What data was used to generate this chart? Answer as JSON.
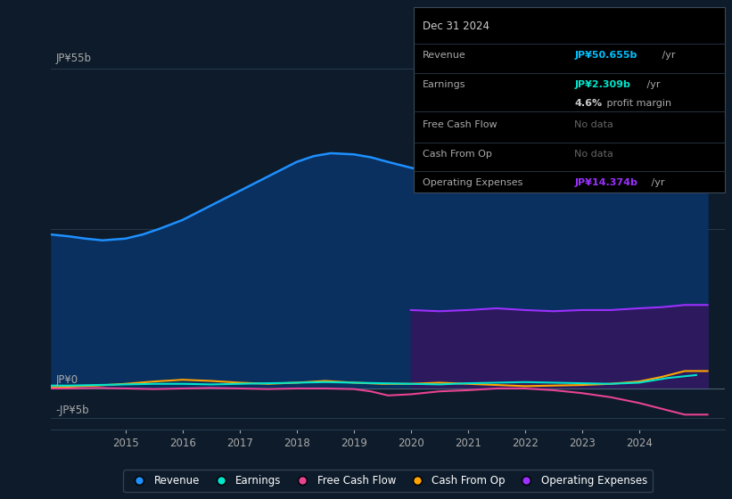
{
  "bg_color": "#0d1b2a",
  "plot_bg_color": "#0d1b2a",
  "grid_color": "#253a50",
  "revenue_color": "#1e90ff",
  "revenue_fill_color": "#0a3060",
  "earnings_color": "#00e5cc",
  "fcf_color": "#e84393",
  "cashfromop_color": "#ffa500",
  "opex_color": "#9b30ff",
  "opex_fill_color": "#2d1a5e",
  "ylabel_top": "JP¥55b",
  "ylabel_zero": "JP¥0",
  "ylabel_neg": "-JP¥5b",
  "ylim": [
    -7,
    60
  ],
  "y_top_line": 55,
  "y_mid_line": 27.5,
  "y_zero_line": 0,
  "y_neg_line": -5,
  "xlim_start": 2013.7,
  "xlim_end": 2025.5,
  "xticks": [
    2015,
    2016,
    2017,
    2018,
    2019,
    2020,
    2021,
    2022,
    2023,
    2024
  ],
  "revenue_x": [
    2013.7,
    2014.0,
    2014.3,
    2014.6,
    2015.0,
    2015.3,
    2015.6,
    2016.0,
    2016.4,
    2016.8,
    2017.2,
    2017.6,
    2018.0,
    2018.3,
    2018.6,
    2019.0,
    2019.3,
    2019.6,
    2020.0,
    2020.4,
    2020.8,
    2021.2,
    2021.6,
    2022.0,
    2022.4,
    2022.8,
    2023.2,
    2023.6,
    2024.0,
    2024.4,
    2024.8,
    2025.2
  ],
  "revenue_y": [
    26.5,
    26.2,
    25.8,
    25.5,
    25.8,
    26.5,
    27.5,
    29.0,
    31.0,
    33.0,
    35.0,
    37.0,
    39.0,
    40.0,
    40.5,
    40.3,
    39.8,
    39.0,
    38.0,
    37.2,
    36.8,
    36.5,
    37.0,
    37.2,
    37.0,
    37.5,
    38.5,
    40.0,
    43.0,
    46.5,
    50.0,
    50.655
  ],
  "earnings_x": [
    2013.7,
    2014.0,
    2014.5,
    2015.0,
    2015.5,
    2016.0,
    2016.5,
    2017.0,
    2017.5,
    2018.0,
    2018.5,
    2019.0,
    2019.5,
    2020.0,
    2020.5,
    2021.0,
    2021.5,
    2022.0,
    2022.5,
    2023.0,
    2023.5,
    2024.0,
    2024.5,
    2025.0
  ],
  "earnings_y": [
    0.5,
    0.5,
    0.6,
    0.7,
    0.8,
    0.8,
    0.7,
    0.8,
    0.9,
    1.0,
    1.1,
    1.0,
    0.9,
    0.8,
    0.7,
    0.9,
    1.0,
    1.1,
    1.0,
    0.9,
    0.8,
    1.0,
    1.8,
    2.309
  ],
  "fcf_x": [
    2013.7,
    2014.0,
    2014.5,
    2015.0,
    2015.5,
    2016.0,
    2016.5,
    2017.0,
    2017.5,
    2018.0,
    2018.5,
    2019.0,
    2019.3,
    2019.6,
    2020.0,
    2020.5,
    2021.0,
    2021.5,
    2022.0,
    2022.5,
    2023.0,
    2023.5,
    2024.0,
    2024.4,
    2024.8,
    2025.2
  ],
  "fcf_y": [
    0.0,
    0.0,
    0.1,
    0.0,
    -0.1,
    0.0,
    0.1,
    0.0,
    -0.1,
    0.0,
    0.0,
    -0.1,
    -0.5,
    -1.2,
    -1.0,
    -0.5,
    -0.3,
    0.0,
    0.0,
    -0.3,
    -0.8,
    -1.5,
    -2.5,
    -3.5,
    -4.5,
    -4.5
  ],
  "cashfromop_x": [
    2013.7,
    2014.0,
    2014.5,
    2015.0,
    2015.5,
    2016.0,
    2016.5,
    2017.0,
    2017.5,
    2018.0,
    2018.5,
    2019.0,
    2019.5,
    2020.0,
    2020.5,
    2021.0,
    2021.5,
    2022.0,
    2022.5,
    2023.0,
    2023.5,
    2024.0,
    2024.4,
    2024.8,
    2025.2
  ],
  "cashfromop_y": [
    0.2,
    0.3,
    0.5,
    0.8,
    1.2,
    1.5,
    1.3,
    1.0,
    0.8,
    1.0,
    1.3,
    1.0,
    0.8,
    0.8,
    1.0,
    0.8,
    0.6,
    0.4,
    0.5,
    0.6,
    0.8,
    1.2,
    2.0,
    3.0,
    3.0
  ],
  "opex_x": [
    2020.0,
    2020.5,
    2021.0,
    2021.5,
    2022.0,
    2022.5,
    2023.0,
    2023.5,
    2024.0,
    2024.4,
    2024.8,
    2025.2
  ],
  "opex_y": [
    13.5,
    13.3,
    13.5,
    13.8,
    13.5,
    13.3,
    13.5,
    13.5,
    13.8,
    14.0,
    14.374,
    14.374
  ],
  "legend_items": [
    {
      "label": "Revenue",
      "color": "#1e90ff"
    },
    {
      "label": "Earnings",
      "color": "#00e5cc"
    },
    {
      "label": "Free Cash Flow",
      "color": "#e84393"
    },
    {
      "label": "Cash From Op",
      "color": "#ffa500"
    },
    {
      "label": "Operating Expenses",
      "color": "#9b30ff"
    }
  ],
  "info_title": "Dec 31 2024",
  "info_revenue_label": "Revenue",
  "info_revenue_val": "JP¥50.655b",
  "info_revenue_val_color": "#00bfff",
  "info_earnings_label": "Earnings",
  "info_earnings_val": "JP¥2.309b",
  "info_earnings_val_color": "#00e5cc",
  "info_margin": "4.6%",
  "info_margin_label": " profit margin",
  "info_fcf_label": "Free Cash Flow",
  "info_fcf_val": "No data",
  "info_cop_label": "Cash From Op",
  "info_cop_val": "No data",
  "info_opex_label": "Operating Expenses",
  "info_opex_val": "JP¥14.374b",
  "info_opex_val_color": "#9b30ff"
}
